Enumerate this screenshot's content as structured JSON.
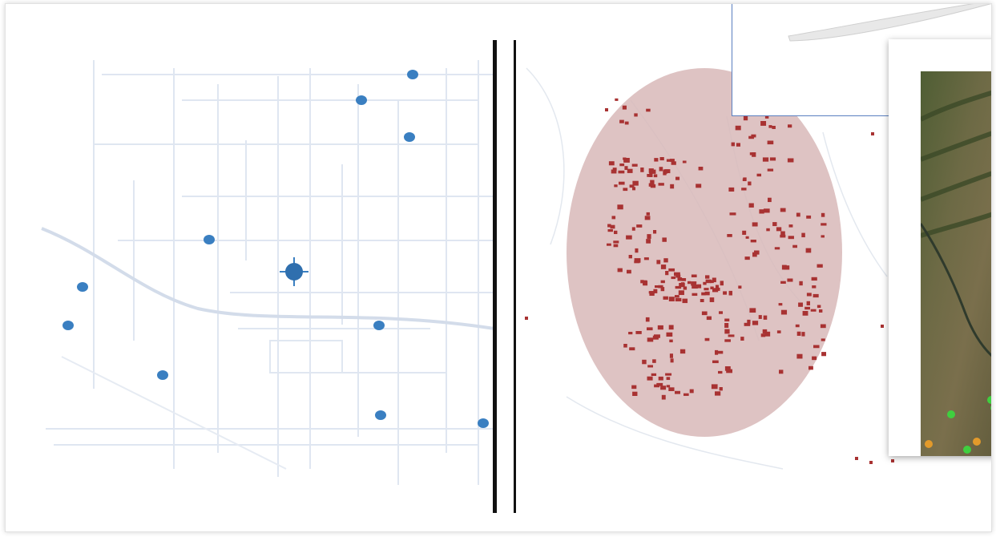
{
  "panels": [
    {
      "name": "street-point-map",
      "marker_color": "#3a7fc1",
      "street_color": "#dfe6f1"
    },
    {
      "name": "radius-cluster-map",
      "region_fill": "#d8b8b8",
      "point_color": "#a83232"
    },
    {
      "name": "satellite-inset-map",
      "point_colors": [
        "#3fcf3f",
        "#e29a2b"
      ]
    }
  ],
  "icons": {
    "selected-point": "crosshair-marker-icon"
  }
}
